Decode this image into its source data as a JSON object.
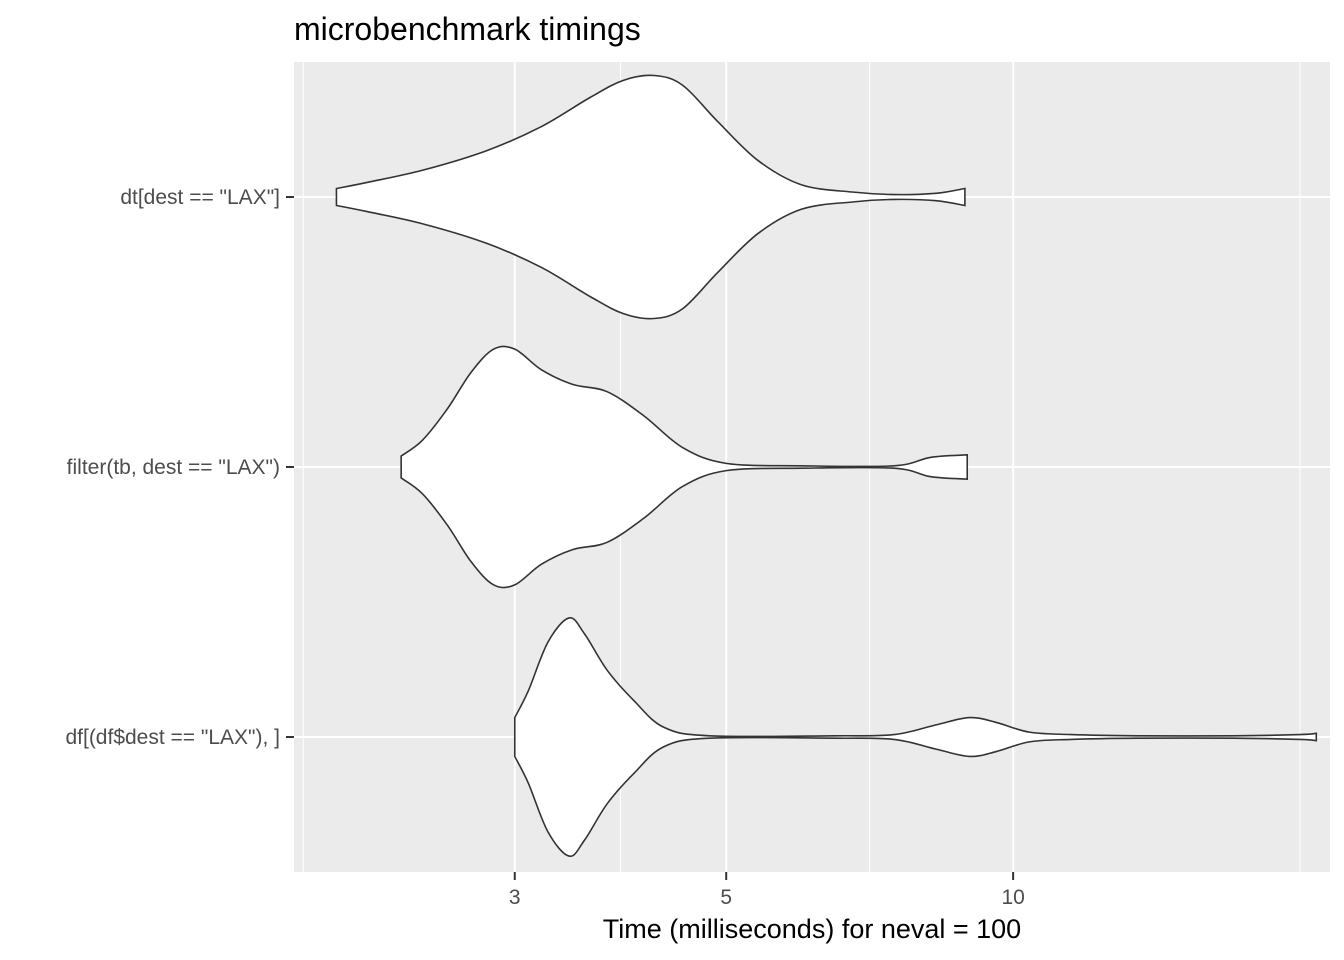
{
  "chart_data": {
    "type": "violin",
    "title": "microbenchmark timings",
    "xlabel": "Time (milliseconds) for neval = 100",
    "ylabel": "",
    "x_scale": "log10",
    "xlim": [
      1.76,
      21.5
    ],
    "x_ticks": [
      3,
      5,
      10
    ],
    "grid": true,
    "categories": [
      "dt[dest == \"LAX\"]",
      "filter(tb, dest == \"LAX\")",
      "df[(df$dest == \"LAX\"), ]"
    ],
    "series": [
      {
        "category": "dt[dest == \"LAX\"]",
        "density": [
          [
            1.95,
            0.07
          ],
          [
            2.1,
            0.12
          ],
          [
            2.4,
            0.22
          ],
          [
            2.8,
            0.38
          ],
          [
            3.2,
            0.58
          ],
          [
            3.6,
            0.82
          ],
          [
            3.9,
            0.96
          ],
          [
            4.2,
            1.0
          ],
          [
            4.5,
            0.92
          ],
          [
            4.9,
            0.62
          ],
          [
            5.4,
            0.3
          ],
          [
            6.0,
            0.1
          ],
          [
            6.8,
            0.04
          ],
          [
            7.5,
            0.02
          ],
          [
            8.3,
            0.03
          ],
          [
            8.9,
            0.07
          ]
        ]
      },
      {
        "category": "filter(tb, dest == \"LAX\")",
        "density": [
          [
            2.28,
            0.09
          ],
          [
            2.4,
            0.22
          ],
          [
            2.55,
            0.48
          ],
          [
            2.7,
            0.78
          ],
          [
            2.85,
            0.97
          ],
          [
            3.0,
            0.97
          ],
          [
            3.2,
            0.8
          ],
          [
            3.45,
            0.68
          ],
          [
            3.75,
            0.62
          ],
          [
            4.1,
            0.42
          ],
          [
            4.5,
            0.16
          ],
          [
            5.0,
            0.03
          ],
          [
            6.0,
            0.01
          ],
          [
            7.5,
            0.01
          ],
          [
            8.2,
            0.08
          ],
          [
            8.95,
            0.1
          ]
        ]
      },
      {
        "category": "df[(df$dest == \"LAX\"), ]",
        "density": [
          [
            3.0,
            0.16
          ],
          [
            3.1,
            0.38
          ],
          [
            3.25,
            0.78
          ],
          [
            3.42,
            0.98
          ],
          [
            3.55,
            0.85
          ],
          [
            3.75,
            0.55
          ],
          [
            4.0,
            0.3
          ],
          [
            4.3,
            0.08
          ],
          [
            4.8,
            0.01
          ],
          [
            6.5,
            0.01
          ],
          [
            7.5,
            0.02
          ],
          [
            8.3,
            0.1
          ],
          [
            9.0,
            0.16
          ],
          [
            9.6,
            0.12
          ],
          [
            10.4,
            0.04
          ],
          [
            11.5,
            0.02
          ],
          [
            13.5,
            0.01
          ],
          [
            17.0,
            0.01
          ],
          [
            20.0,
            0.02
          ],
          [
            20.8,
            0.03
          ]
        ]
      }
    ]
  }
}
